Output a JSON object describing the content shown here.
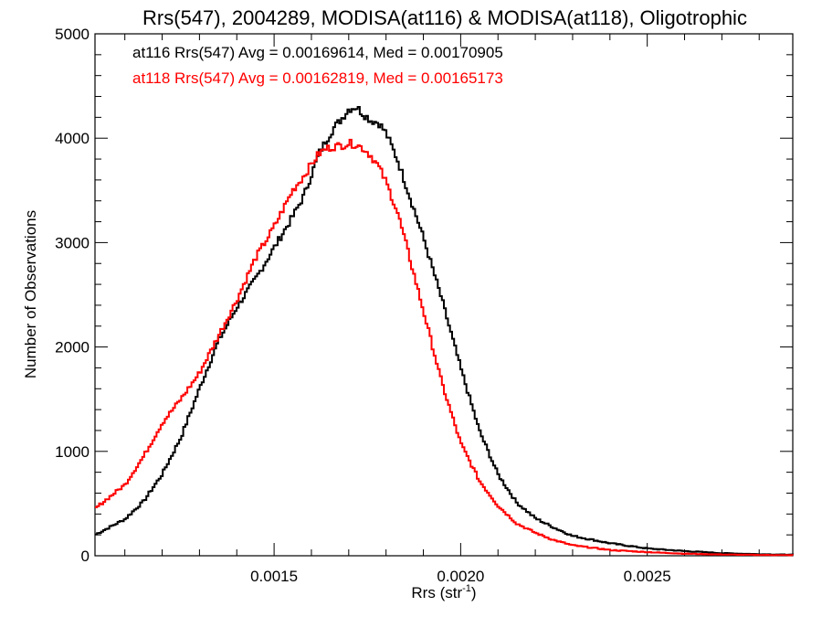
{
  "chart_data": {
    "type": "line",
    "title": "Rrs(547), 2004289, MODISA(at116) & MODISA(at118), Oligotrophic",
    "xlabel_main": "Rrs (str",
    "xlabel_sup": "-1",
    "xlabel_close": ")",
    "ylabel": "Number of Observations",
    "xlim": [
      0.00102,
      0.00289
    ],
    "ylim": [
      0,
      5000
    ],
    "x_ticks": [
      0.0015,
      0.002,
      0.0025
    ],
    "x_tick_labels": [
      "0.0015",
      "0.0020",
      "0.0025"
    ],
    "y_ticks": [
      0,
      1000,
      2000,
      3000,
      4000,
      5000
    ],
    "y_tick_labels": [
      "0",
      "1000",
      "2000",
      "3000",
      "4000",
      "5000"
    ],
    "legend": [
      "at116 Rrs(547) Avg = 0.00169614, Med = 0.00170905",
      "at118 Rrs(547) Avg = 0.00162819, Med = 0.00165173"
    ],
    "series": [
      {
        "color": "#000000",
        "x": [
          0.00102,
          0.0011,
          0.00115,
          0.0012,
          0.00125,
          0.0013,
          0.00135,
          0.0014,
          0.00145,
          0.0015,
          0.00155,
          0.00158,
          0.0016,
          0.00162,
          0.00164,
          0.00166,
          0.00168,
          0.0017,
          0.00172,
          0.00174,
          0.00176,
          0.00178,
          0.0018,
          0.00183,
          0.00186,
          0.0019,
          0.00195,
          0.002,
          0.00205,
          0.0021,
          0.00215,
          0.0022,
          0.00225,
          0.0023,
          0.0024,
          0.0025,
          0.0026,
          0.0027,
          0.0028,
          0.00289
        ],
        "values": [
          200,
          350,
          520,
          780,
          1130,
          1600,
          2050,
          2380,
          2650,
          2950,
          3250,
          3450,
          3650,
          3850,
          3980,
          4100,
          4180,
          4280,
          4300,
          4230,
          4170,
          4150,
          4050,
          3800,
          3480,
          3050,
          2450,
          1800,
          1200,
          780,
          510,
          360,
          270,
          190,
          120,
          70,
          45,
          25,
          15,
          10
        ]
      },
      {
        "color": "#ff0000",
        "x": [
          0.00102,
          0.0011,
          0.00115,
          0.0012,
          0.00125,
          0.0013,
          0.00135,
          0.0014,
          0.00145,
          0.0015,
          0.00155,
          0.00158,
          0.0016,
          0.00162,
          0.00164,
          0.00166,
          0.00168,
          0.0017,
          0.00172,
          0.00174,
          0.00176,
          0.00178,
          0.0018,
          0.00183,
          0.00186,
          0.0019,
          0.00195,
          0.002,
          0.00205,
          0.0021,
          0.00215,
          0.0022,
          0.00225,
          0.0023,
          0.0024,
          0.0025,
          0.0026,
          0.0027,
          0.0028,
          0.00289
        ],
        "values": [
          450,
          680,
          950,
          1270,
          1500,
          1750,
          2100,
          2450,
          2850,
          3150,
          3500,
          3640,
          3750,
          3850,
          3900,
          3920,
          3930,
          3950,
          3940,
          3900,
          3830,
          3730,
          3580,
          3300,
          2900,
          2350,
          1650,
          1080,
          720,
          480,
          310,
          220,
          150,
          100,
          55,
          35,
          20,
          12,
          8,
          5
        ]
      }
    ]
  }
}
